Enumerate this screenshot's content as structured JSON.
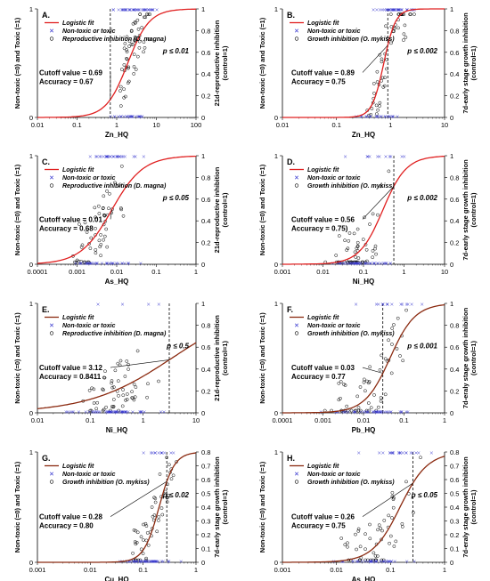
{
  "colors": {
    "logistic_fit": "#e02020",
    "logistic_fit_alt": "#8b2a10",
    "nontoxic_marker": "#3a3ad0",
    "inhibition_marker": "#000000",
    "cutoff_line": "#000000"
  },
  "chart_data": [
    {
      "type": "scatter",
      "panel_label": "A.",
      "xlabel": "Zn_HQ",
      "ylabel_left": "Non-toxic (=0) and Toxic (=1)",
      "ylabel_right": [
        "21d-reproductive inhibition",
        "(control=1)"
      ],
      "xscale": "log",
      "xlim": [
        0.01,
        100
      ],
      "xticks": [
        "0.01",
        "0.1",
        "1",
        "10",
        "100"
      ],
      "ylim": [
        0,
        1
      ],
      "yticks_left": [
        "0",
        "1"
      ],
      "yticks_right": [
        "0",
        "0.2",
        "0.4",
        "0.6",
        "0.8",
        "1"
      ],
      "legend": {
        "placement": "top-left",
        "entries": [
          "Logistic fit",
          "Non-toxic or toxic",
          "Reproductive inhibition (D. magna)"
        ]
      },
      "annotation": [
        "Cutoff value = 0.69",
        "Accuracy = 0.67"
      ],
      "p_value": "p ≤ 0.01",
      "cutoff_x": 0.69,
      "logistic": {
        "x0": 1.9,
        "slope": 1.6
      },
      "fit_color": "red",
      "scatter_range": [
        1.0,
        8.0
      ],
      "scatter_center": 3.0,
      "binary_range": [
        0.6,
        12
      ]
    },
    {
      "type": "scatter",
      "panel_label": "B.",
      "xlabel": "Zn_HQ",
      "ylabel_left": "Non-toxic (=0) and Toxic (=1)",
      "ylabel_right": [
        "7d-early stage growth inhibition",
        "(control=1)"
      ],
      "xscale": "log",
      "xlim": [
        0.01,
        10
      ],
      "xticks": [
        "0.01",
        "0.1",
        "1",
        "10"
      ],
      "ylim": [
        0,
        1
      ],
      "yticks_left": [
        "0",
        "1"
      ],
      "yticks_right": [
        "0",
        "0.2",
        "0.4",
        "0.6",
        "0.8",
        "1"
      ],
      "legend": {
        "placement": "top-left",
        "entries": [
          "Logistic fit",
          "Non-toxic or toxic",
          "Growth inhibition (O. mykiss)"
        ]
      },
      "annotation": [
        "Cutoff value = 0.89",
        "Accuracy = 0.75"
      ],
      "p_value": "p ≤ 0.002",
      "cutoff_x": 0.89,
      "logistic": {
        "x0": 0.75,
        "slope": 4.0
      },
      "fit_color": "red",
      "scatter_range": [
        0.3,
        3.0
      ],
      "scatter_center": 0.9,
      "binary_range": [
        0.2,
        5
      ]
    },
    {
      "type": "scatter",
      "panel_label": "C.",
      "xlabel": "As_HQ",
      "ylabel_left": "Non-toxic (=0) and Toxic (=1)",
      "ylabel_right": [
        "21d-reproductive inhibition",
        "(control=1)"
      ],
      "xscale": "log",
      "xlim": [
        0.0001,
        1
      ],
      "xticks": [
        "0.0001",
        "0.001",
        "0.01",
        "0.1",
        "1"
      ],
      "ylim": [
        0,
        1
      ],
      "yticks_left": [
        "0",
        "1"
      ],
      "yticks_right": [
        "0",
        "0.2",
        "0.4",
        "0.6",
        "0.8",
        "1"
      ],
      "legend": {
        "placement": "top-left",
        "entries": [
          "Logistic fit",
          "Non-toxic or toxic",
          "Reproductive inhibition (D. magna)"
        ]
      },
      "annotation": [
        "Cutoff value = 0.01",
        "Accuracy = 0.68"
      ],
      "p_value": "p ≤ 0.05",
      "cutoff_x": null,
      "logistic": {
        "x0": 0.0075,
        "slope": 1.1
      },
      "fit_color": "red",
      "scatter_range": [
        0.0007,
        0.02
      ],
      "scatter_center": 0.005,
      "binary_range": [
        0.0006,
        0.06
      ]
    },
    {
      "type": "scatter",
      "panel_label": "D.",
      "xlabel": "Ni_HQ",
      "ylabel_left": "Non-toxic (=0) and Toxic (=1)",
      "ylabel_right": [
        "7d-early stage growth inhibition",
        "(control=1)"
      ],
      "xscale": "log",
      "xlim": [
        0.001,
        10
      ],
      "xticks": [
        "0.001",
        "0.01",
        "0.1",
        "1",
        "10"
      ],
      "ylim": [
        0,
        1
      ],
      "yticks_left": [
        "0",
        "1"
      ],
      "yticks_right": [
        "0",
        "0.2",
        "0.4",
        "0.6",
        "0.8",
        "1"
      ],
      "legend": {
        "placement": "top-left",
        "entries": [
          "Logistic fit",
          "Non-toxic or toxic",
          "Growth inhibition (O. mykiss)"
        ]
      },
      "annotation": [
        "Cutoff value = 0.56",
        "Accuracy = 0.75)"
      ],
      "p_value": "p ≤ 0.002",
      "cutoff_x": 0.56,
      "logistic": {
        "x0": 0.3,
        "slope": 1.5
      },
      "fit_color": "red",
      "scatter_range": [
        0.01,
        0.5
      ],
      "scatter_center": 0.08,
      "binary_range": [
        0.01,
        1.2
      ]
    },
    {
      "type": "scatter",
      "panel_label": "E.",
      "xlabel": "Ni_HQ",
      "ylabel_left": "Non-toxic (=0) and Toxic (=1)",
      "ylabel_right": [
        "21d-reproductive inhibition",
        "(control=1)"
      ],
      "xscale": "log",
      "xlim": [
        0.01,
        10
      ],
      "xticks": [
        "0.01",
        "0.1",
        "1",
        "10"
      ],
      "ylim": [
        0,
        1
      ],
      "yticks_left": [
        "0",
        "1"
      ],
      "yticks_right": [
        "0",
        "0.2",
        "0.4",
        "0.6",
        "0.8",
        "1"
      ],
      "legend": {
        "placement": "top-left",
        "entries": [
          "Logistic fit",
          "Non-toxic or toxic",
          "Reproductive inhibition (D. magna)"
        ]
      },
      "annotation": [
        "Cutoff value = 3.12",
        "Accuracy = 0.8411"
      ],
      "p_value": "p ≤ 0.5",
      "cutoff_x": 3.12,
      "logistic": {
        "x0": 3.5,
        "slope": 0.55
      },
      "fit_color": "dark",
      "scatter_range": [
        0.05,
        2.0
      ],
      "scatter_center": 0.3,
      "binary_range": [
        0.03,
        3
      ]
    },
    {
      "type": "scatter",
      "panel_label": "F.",
      "xlabel": "Pb_HQ",
      "ylabel_left": "Non-toxic (=0) and Toxic (=1)",
      "ylabel_right": [
        "7d-eraly stage growth inhibition",
        "(control=1)"
      ],
      "xscale": "log",
      "xlim": [
        0.0001,
        1
      ],
      "xticks": [
        "0.0001",
        "0.001",
        "0.01",
        "0.1",
        "1"
      ],
      "ylim": [
        0,
        1
      ],
      "yticks_left": [
        "0",
        "1"
      ],
      "yticks_right": [
        "0",
        "0.2",
        "0.4",
        "0.6",
        "0.8",
        "1"
      ],
      "legend": {
        "placement": "top-left",
        "entries": [
          "Logistic fit",
          "Non-toxic or toxic",
          "Growth inhibition (O. mykiss)"
        ]
      },
      "annotation": [
        "Cutoff value = 0.03",
        "Accuracy = 0.77"
      ],
      "p_value": "p ≤ 0.001",
      "cutoff_x": 0.03,
      "logistic": {
        "x0": 0.045,
        "slope": 1.4
      },
      "fit_color": "dark",
      "scatter_range": [
        0.001,
        0.2
      ],
      "scatter_center": 0.02,
      "binary_range": [
        0.0008,
        0.4
      ]
    },
    {
      "type": "scatter",
      "panel_label": "G.",
      "xlabel": "Cu_HQ",
      "ylabel_left": "Non-toxic (=0) and Toxic (=1)",
      "ylabel_right": [
        "7d-early stage growth inhibition",
        "(control=1)"
      ],
      "xscale": "log",
      "xlim": [
        0.001,
        1
      ],
      "xticks": [
        "0.001",
        "0.01",
        "0.1",
        "1"
      ],
      "ylim": [
        0,
        1
      ],
      "yticks_left": [
        "0",
        "1"
      ],
      "yticks_right": [
        "0",
        "0.1",
        "0.2",
        "0.3",
        "0.4",
        "0.5",
        "0.6",
        "0.7",
        "0.8"
      ],
      "legend": {
        "placement": "top-left",
        "entries": [
          "Logistic fit",
          "Non-toxic or toxic",
          "Growth inhibition (O. mykiss)"
        ]
      },
      "annotation": [
        "Cutoff value = 0.28",
        "Accuracy = 0.80"
      ],
      "p_value": "p ≤ 0.02",
      "cutoff_x": 0.28,
      "logistic": {
        "x0": 0.2,
        "slope": 3.0
      },
      "fit_color": "dark",
      "scatter_range": [
        0.05,
        0.5
      ],
      "scatter_center": 0.12,
      "binary_range": [
        0.03,
        0.6
      ]
    },
    {
      "type": "scatter",
      "panel_label": "H.",
      "xlabel": "As_HQ",
      "ylabel_left": "Non-toxic (=0) and Toxic (=1)",
      "ylabel_right": [
        "7d-eraly stage growth inhibition",
        "(control=1)"
      ],
      "xscale": "log",
      "xlim": [
        0.001,
        1
      ],
      "xticks": [
        "0.001",
        "0.01",
        "0.1",
        "1"
      ],
      "ylim": [
        0,
        1
      ],
      "yticks_left": [
        "0",
        "1"
      ],
      "yticks_right": [
        "0",
        "0.1",
        "0.2",
        "0.3",
        "0.4",
        "0.5",
        "0.6",
        "0.7",
        "0.8"
      ],
      "legend": {
        "placement": "top-left",
        "entries": [
          "Logistic fit",
          "Non-toxic or toxic",
          "Growth inhibition (O. mykiss)"
        ]
      },
      "annotation": [
        "Cutoff value = 0.26",
        "Accuracy = 0.75"
      ],
      "p_value": "p ≤ 0.05",
      "cutoff_x": 0.26,
      "logistic": {
        "x0": 0.15,
        "slope": 1.7
      },
      "fit_color": "dark",
      "scatter_range": [
        0.008,
        0.4
      ],
      "scatter_center": 0.05,
      "binary_range": [
        0.008,
        0.6
      ]
    }
  ]
}
